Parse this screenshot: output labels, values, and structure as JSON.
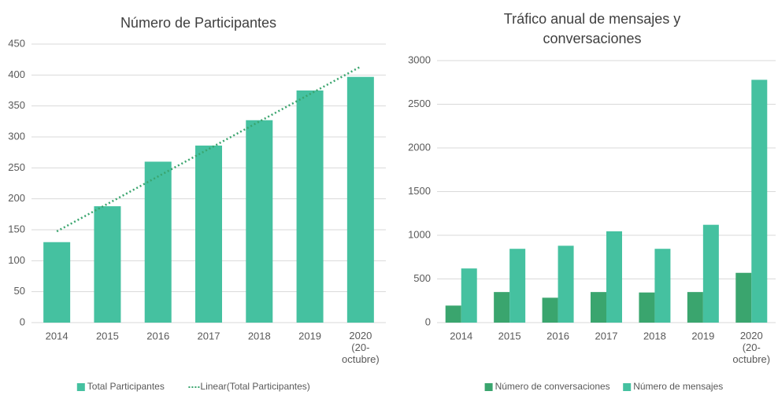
{
  "chart_data": [
    {
      "type": "bar",
      "title": "Número de Participantes",
      "categories": [
        "2014",
        "2015",
        "2016",
        "2017",
        "2018",
        "2019",
        "2020\n(20-\noctubre)"
      ],
      "series": [
        {
          "name": "Total Participantes",
          "color": "#45c1a0",
          "values": [
            130,
            188,
            260,
            286,
            327,
            375,
            397
          ]
        }
      ],
      "trendline": {
        "name": "Linear(Total Participantes)",
        "color": "#3aa56e",
        "values": [
          147.4,
          413.5
        ]
      },
      "ylim": [
        0,
        450
      ],
      "yticks": [
        0,
        50,
        100,
        150,
        200,
        250,
        300,
        350,
        400,
        450
      ],
      "grid": true,
      "legend": "bottom"
    },
    {
      "type": "bar",
      "title": "Tráfico anual de mensajes y\nconversaciones",
      "categories": [
        "2014",
        "2015",
        "2016",
        "2017",
        "2018",
        "2019",
        "2020\n(20-\noctubre)"
      ],
      "series": [
        {
          "name": "Número de conversaciones",
          "color": "#3aa56e",
          "values": [
            195,
            350,
            285,
            350,
            345,
            350,
            570
          ]
        },
        {
          "name": "Número de mensajes",
          "color": "#45c1a0",
          "values": [
            620,
            845,
            880,
            1045,
            845,
            1120,
            2780
          ]
        }
      ],
      "ylim": [
        0,
        3000
      ],
      "yticks": [
        0,
        500,
        1000,
        1500,
        2000,
        2500,
        3000
      ],
      "grid": true,
      "legend": "bottom"
    }
  ]
}
